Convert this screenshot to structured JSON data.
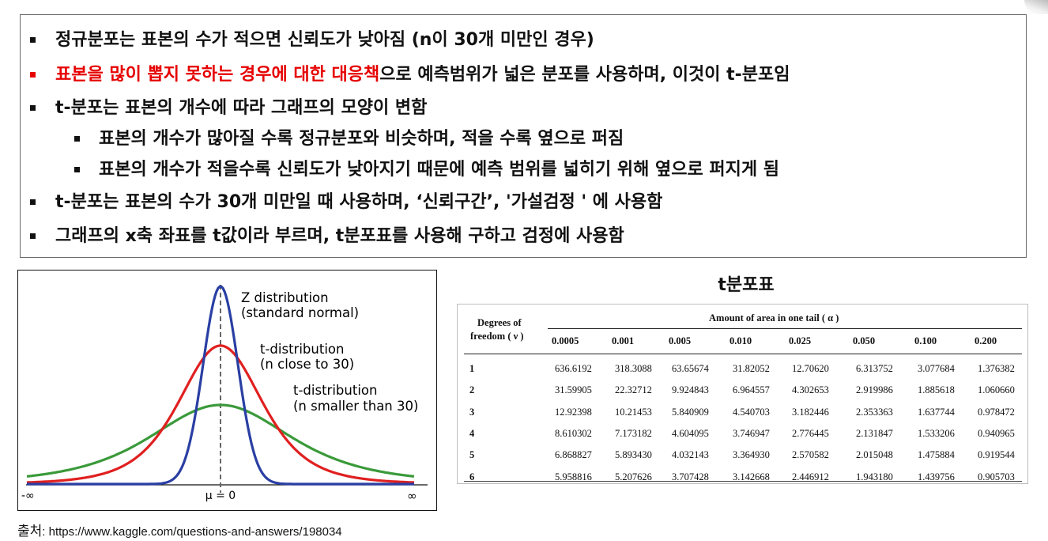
{
  "bullets": [
    {
      "text": "정규분포는 표본의 수가 적으면 신뢰도가 낮아짐 (n이 30개 미만인 경우)"
    },
    {
      "text_red": "표본을 많이 뽑지 못하는 경우에 대한 대응책",
      "text_rest": "으로 예측범위가 넓은 분포를 사용하며, 이것이 t-분포임"
    },
    {
      "text": "t-분포는 표본의 개수에 따라 그래프의 모양이 변함"
    },
    {
      "text": "표본의 개수가 많아질 수록 정규분포와 비슷하며, 적을 수록 옆으로 퍼짐"
    },
    {
      "text": "표본의 개수가 적을수록 신뢰도가 낮아지기 때문에 예측 범위를 넓히기 위해 옆으로 퍼지게 됨"
    },
    {
      "text": "t-분포는 표본의 수가 30개 미만일 때 사용하며, ‘신뢰구간’, '가설검정 ' 에 사용함"
    },
    {
      "text": "그래프의 x축  좌표를 t값이라 부르며, t분포표를 사용해 구하고 검정에 사용함"
    }
  ],
  "figure": {
    "z_label_1": "Z distribution",
    "z_label_2": "(standard normal)",
    "t30_label_1": "t-distribution",
    "t30_label_2": "(n close to 30)",
    "tsmall_label_1": "t-distribution",
    "tsmall_label_2": "(n smaller than 30)",
    "left_label": "-∞",
    "center_label": "μ = 0",
    "right_label": "∞",
    "colors": {
      "z": "#2a3fa3",
      "t30": "#e02020",
      "tsmall": "#3a9a3a"
    }
  },
  "source": {
    "label": "출처",
    "text": ": https://www.kaggle.com/questions-and-answers/198034"
  },
  "table": {
    "title": "t분포표",
    "df_header_1": "Degrees of",
    "df_header_2": "freedom ( ν )",
    "area_header": "Amount of area in one tail ( α )",
    "alphas": [
      "0.0005",
      "0.001",
      "0.005",
      "0.010",
      "0.025",
      "0.050",
      "0.100",
      "0.200"
    ],
    "rows": [
      {
        "df": "1",
        "values": [
          "636.6192",
          "318.3088",
          "63.65674",
          "31.82052",
          "12.70620",
          "6.313752",
          "3.077684",
          "1.376382"
        ]
      },
      {
        "df": "2",
        "values": [
          "31.59905",
          "22.32712",
          "9.924843",
          "6.964557",
          "4.302653",
          "2.919986",
          "1.885618",
          "1.060660"
        ]
      },
      {
        "df": "3",
        "values": [
          "12.92398",
          "10.21453",
          "5.840909",
          "4.540703",
          "3.182446",
          "2.353363",
          "1.637744",
          "0.978472"
        ]
      },
      {
        "df": "4",
        "values": [
          "8.610302",
          "7.173182",
          "4.604095",
          "3.746947",
          "2.776445",
          "2.131847",
          "1.533206",
          "0.940965"
        ]
      },
      {
        "df": "5",
        "values": [
          "6.868827",
          "5.893430",
          "4.032143",
          "3.364930",
          "2.570582",
          "2.015048",
          "1.475884",
          "0.919544"
        ]
      },
      {
        "df": "6",
        "values": [
          "5.958816",
          "5.207626",
          "3.707428",
          "3.142668",
          "2.446912",
          "1.943180",
          "1.439756",
          "0.905703"
        ]
      }
    ]
  }
}
